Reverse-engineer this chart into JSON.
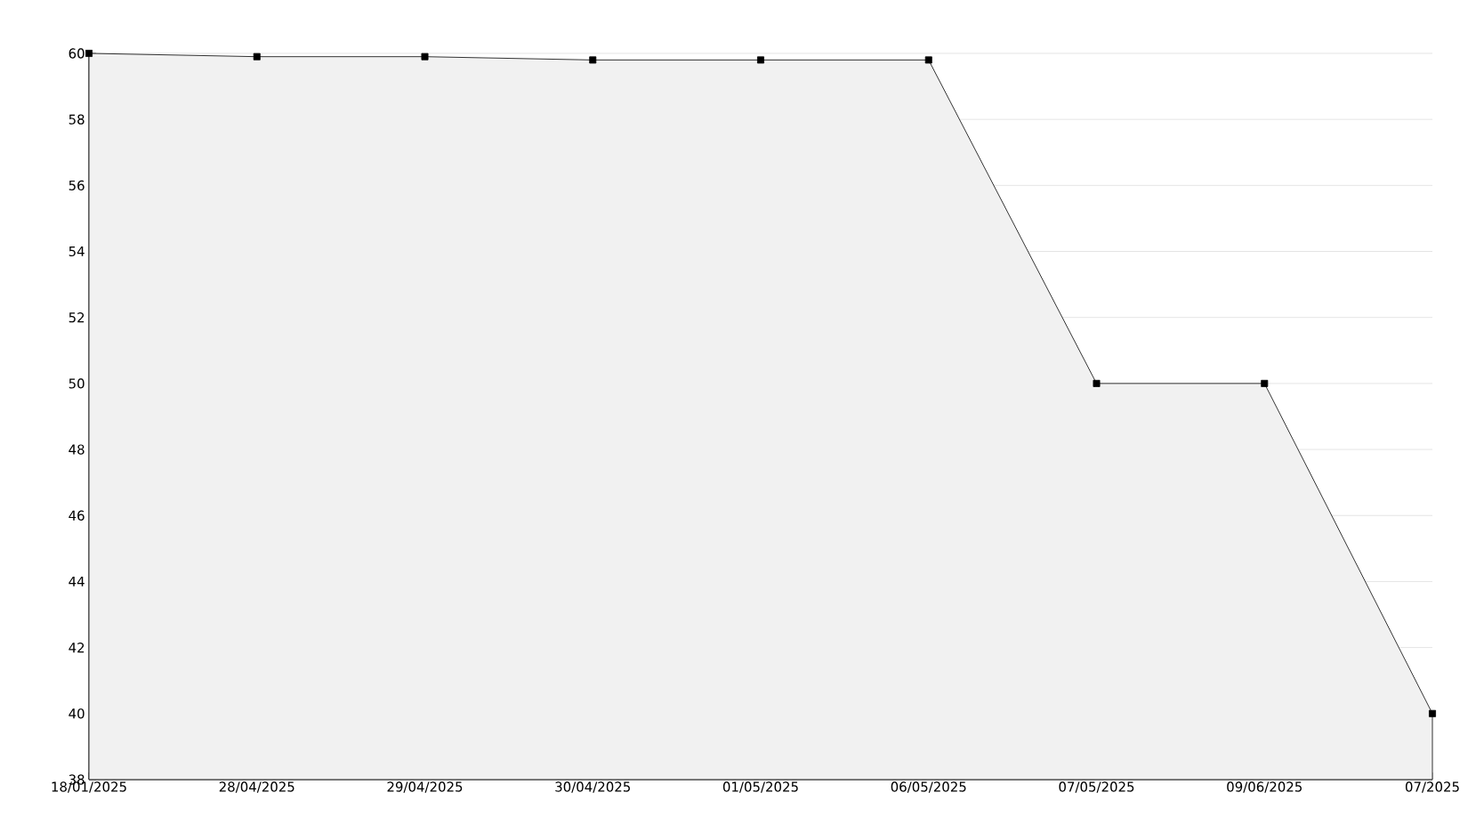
{
  "chart_data": {
    "type": "area",
    "categories": [
      "18/01/2025",
      "28/04/2025",
      "29/04/2025",
      "30/04/2025",
      "01/05/2025",
      "06/05/2025",
      "07/05/2025",
      "09/06/2025",
      "07/2025"
    ],
    "series": [
      {
        "color": "#000000",
        "values": [
          60,
          59.9,
          59.9,
          59.8,
          59.8,
          59.8,
          50,
          50,
          40
        ]
      }
    ],
    "ylim": [
      38,
      60
    ],
    "yticks": [
      38,
      40,
      42,
      44,
      46,
      48,
      50,
      52,
      54,
      56,
      58,
      60
    ],
    "grid": "y",
    "marker": "square",
    "line_style": "solid"
  }
}
